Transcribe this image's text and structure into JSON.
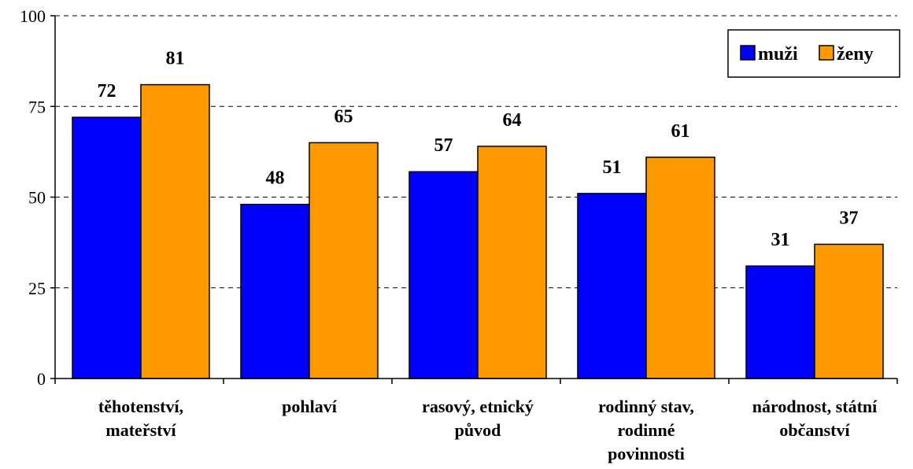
{
  "chart_data": {
    "type": "bar",
    "title": "",
    "xlabel": "",
    "ylabel": "",
    "ylim": [
      0,
      100
    ],
    "yticks": [
      0,
      25,
      50,
      75,
      100
    ],
    "grid": "horizontal-dashed",
    "legend_position": "top-right",
    "categories": [
      [
        "těhotenství,",
        "mateřství"
      ],
      [
        "pohlaví"
      ],
      [
        "rasový, etnický",
        "původ"
      ],
      [
        "rodinný stav,",
        "rodinné",
        "povinnosti"
      ],
      [
        "národnost, státní",
        "občanství"
      ]
    ],
    "series": [
      {
        "name": "muži",
        "color": "#0000ff",
        "values": [
          72,
          48,
          57,
          51,
          31
        ]
      },
      {
        "name": "ženy",
        "color": "#ff9900",
        "values": [
          81,
          65,
          64,
          61,
          37
        ]
      }
    ]
  }
}
